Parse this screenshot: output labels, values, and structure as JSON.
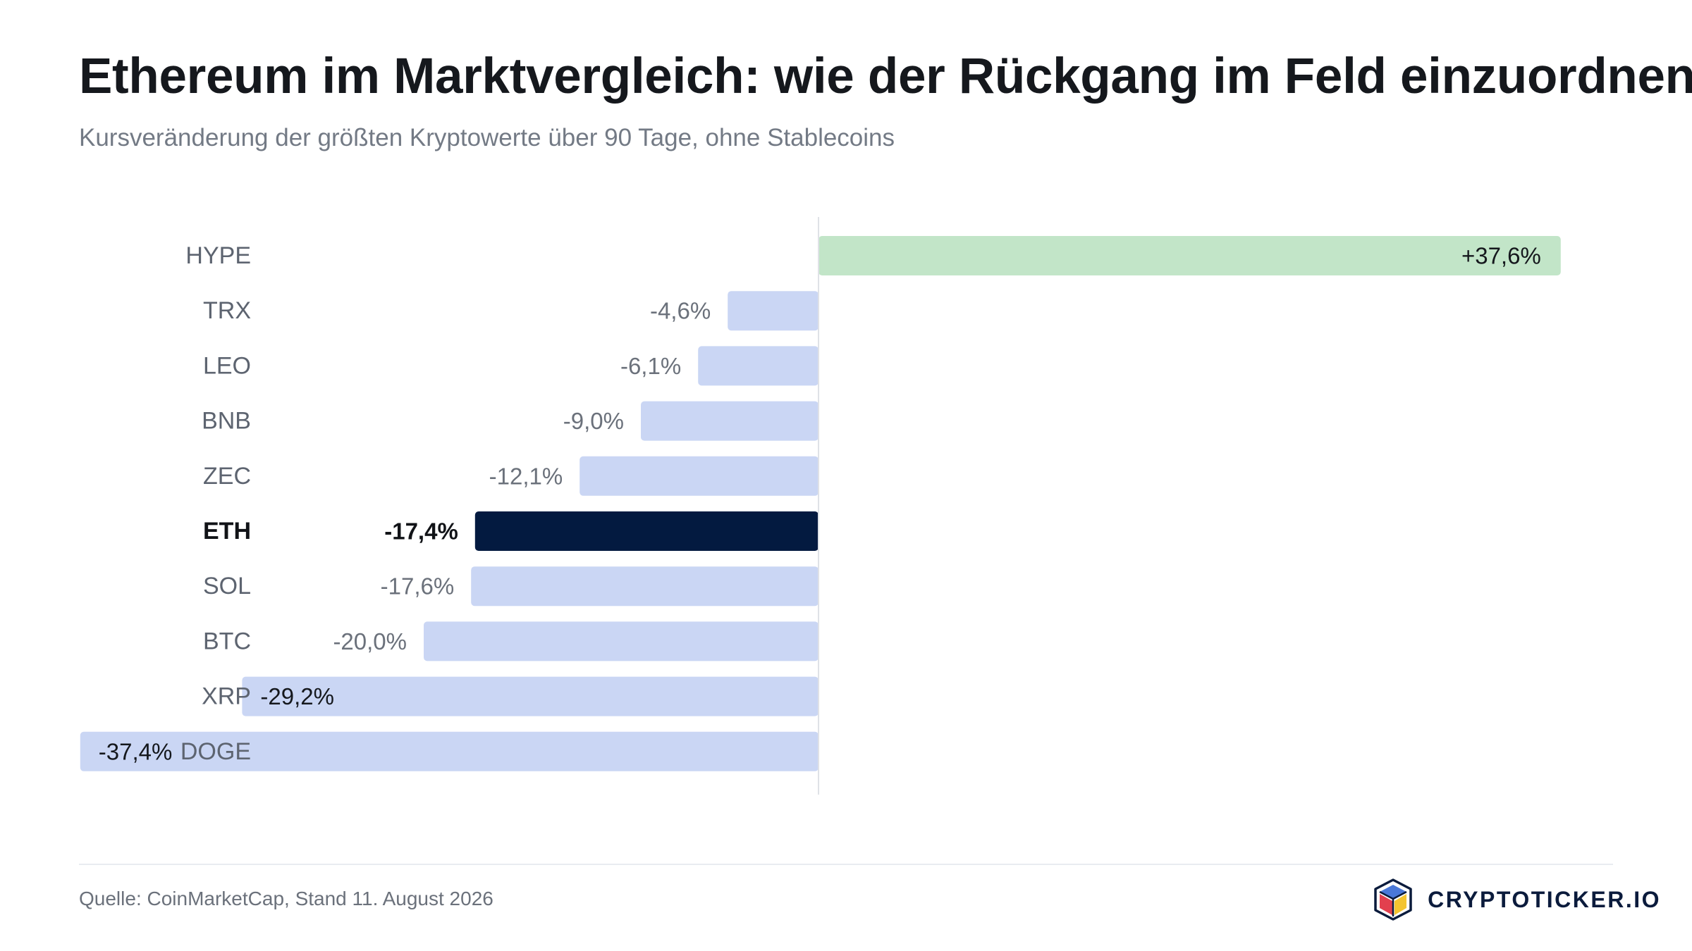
{
  "header": {
    "title": "Ethereum im Marktvergleich: wie der Rückgang im Feld einzuordnen ist",
    "subtitle": "Kursveränderung der größten Kryptowerte über 90 Tage, ohne Stablecoins"
  },
  "footer": {
    "source": "Quelle: CoinMarketCap, Stand 11. August 2026",
    "brand": "CRYPTOTICKER.IO"
  },
  "colors": {
    "positive": "#c2e5c8",
    "negative": "#cad6f4",
    "highlight": "#031a40",
    "zero_line": "#dfe2e7"
  },
  "chart_data": {
    "type": "bar",
    "orientation": "horizontal",
    "categories": [
      "HYPE",
      "TRX",
      "LEO",
      "BNB",
      "ZEC",
      "ETH",
      "SOL",
      "BTC",
      "XRP",
      "DOGE"
    ],
    "values": [
      37.6,
      -4.6,
      -6.1,
      -9.0,
      -12.1,
      -17.4,
      -17.6,
      -20.0,
      -29.2,
      -37.4
    ],
    "value_labels": [
      "+37,6%",
      "-4,6%",
      "-6,1%",
      "-9,0%",
      "-12,1%",
      "-17,4%",
      "-17,6%",
      "-20,0%",
      "-29,2%",
      "-37,4%"
    ],
    "highlight": "ETH",
    "xlim": [
      -37.4,
      37.6
    ],
    "grid": false,
    "legend": "none",
    "unit": "%"
  }
}
